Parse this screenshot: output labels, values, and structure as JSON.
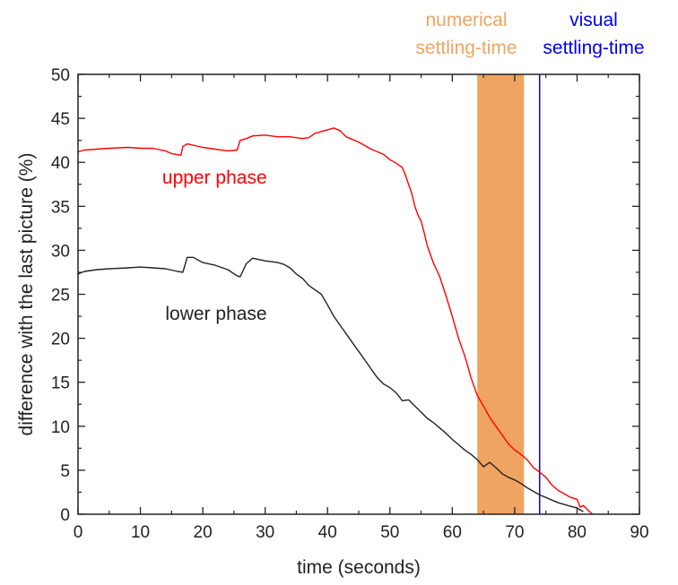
{
  "chart_data": {
    "type": "line",
    "xlabel": "time (seconds)",
    "ylabel": "difference with the last picture (%)",
    "xlim": [
      0,
      90
    ],
    "ylim": [
      0,
      50
    ],
    "xticks": [
      0,
      10,
      20,
      30,
      40,
      50,
      60,
      70,
      80,
      90
    ],
    "yticks": [
      0,
      5,
      10,
      15,
      20,
      25,
      30,
      35,
      40,
      45,
      50
    ],
    "grid": false,
    "legend": "none",
    "series": [
      {
        "name": "upper phase",
        "color": "#ff0000",
        "x": [
          0,
          1,
          3,
          5,
          8,
          10,
          12,
          14,
          15,
          16.5,
          16.8,
          17.5,
          20,
          22,
          24,
          25.5,
          26,
          27,
          28,
          30,
          32,
          34,
          36,
          37,
          38,
          39,
          40,
          41,
          42,
          43,
          45,
          47,
          49,
          50,
          51,
          52,
          52.5,
          53,
          53.5,
          54,
          54.5,
          55,
          55.5,
          56,
          57,
          58,
          59,
          60,
          61,
          62,
          62.5,
          63,
          63.5,
          64,
          65,
          66,
          67,
          68,
          69,
          70,
          71,
          72,
          73,
          74,
          75,
          76,
          77,
          78,
          79,
          80,
          80.5,
          81,
          82,
          82.5
        ],
        "y": [
          41.2,
          41.4,
          41.5,
          41.6,
          41.7,
          41.6,
          41.6,
          41.3,
          41.0,
          40.8,
          41.8,
          42.1,
          41.7,
          41.5,
          41.3,
          41.4,
          42.5,
          42.7,
          43.0,
          43.1,
          42.9,
          42.9,
          42.7,
          42.8,
          43.3,
          43.5,
          43.7,
          43.9,
          43.6,
          42.9,
          42.3,
          41.5,
          40.9,
          40.3,
          39.9,
          39.4,
          38.5,
          37.5,
          36.5,
          35.0,
          34.0,
          33.3,
          32.0,
          30.5,
          28.5,
          27.0,
          24.8,
          22.5,
          20.0,
          18.0,
          16.8,
          15.5,
          14.5,
          13.5,
          12.3,
          11.0,
          10.0,
          9.0,
          8.0,
          7.3,
          6.8,
          6.2,
          5.3,
          4.8,
          4.2,
          3.3,
          2.7,
          2.3,
          1.9,
          1.7,
          0.8,
          1.0,
          0.3,
          0.0
        ]
      },
      {
        "name": "lower phase",
        "color": "#222222",
        "x": [
          0,
          1,
          3,
          5,
          8,
          10,
          12,
          14,
          16,
          16.8,
          17.5,
          18.5,
          20,
          22,
          24,
          25.5,
          26,
          27,
          28,
          30,
          32,
          33,
          34,
          35,
          36,
          37,
          38,
          39,
          40,
          41,
          42,
          43,
          44,
          45,
          46,
          47,
          48,
          49,
          50,
          51,
          52,
          53,
          54,
          55,
          56,
          57,
          58,
          59,
          60,
          61,
          62,
          63,
          64,
          65,
          66,
          67,
          68,
          69,
          70,
          71,
          72,
          73,
          74,
          75,
          76,
          77,
          78,
          79,
          80,
          80.5,
          81
        ],
        "y": [
          27.3,
          27.6,
          27.8,
          27.9,
          28.0,
          28.1,
          28.0,
          27.9,
          27.6,
          27.5,
          29.2,
          29.2,
          28.6,
          28.3,
          27.8,
          27.1,
          27.0,
          28.5,
          29.1,
          28.8,
          28.6,
          28.4,
          28.0,
          27.3,
          26.8,
          26.0,
          25.5,
          25.0,
          23.8,
          22.5,
          21.5,
          20.5,
          19.5,
          18.5,
          17.5,
          16.5,
          15.5,
          14.8,
          14.4,
          13.8,
          12.9,
          13.0,
          12.3,
          11.6,
          10.9,
          10.4,
          9.8,
          9.2,
          8.5,
          7.9,
          7.3,
          6.8,
          6.2,
          5.4,
          5.9,
          5.3,
          4.6,
          4.2,
          3.9,
          3.5,
          3.0,
          2.6,
          2.2,
          1.9,
          1.6,
          1.3,
          1.1,
          0.9,
          0.7,
          0.5,
          0.3
        ]
      }
    ],
    "bands": [
      {
        "label": "numerical\nsettling-time",
        "x_start": 64.0,
        "x_end": 71.5,
        "color": "#f0a462"
      }
    ],
    "vlines": [
      {
        "label": "visual\nsettling-time",
        "x": 74.0,
        "color": "#0000ee"
      }
    ],
    "annotations": [
      {
        "text": "upper phase",
        "color": "#ff0000",
        "x": 13.5,
        "y": 37.6
      },
      {
        "text": "lower phase",
        "color": "#222222",
        "x": 14.0,
        "y": 22.1
      }
    ],
    "top_labels": [
      {
        "lines": [
          "numerical",
          "settling-time"
        ],
        "color": "#f0a462"
      },
      {
        "lines": [
          "visual",
          "settling-time"
        ],
        "color": "#0000ee"
      }
    ]
  }
}
